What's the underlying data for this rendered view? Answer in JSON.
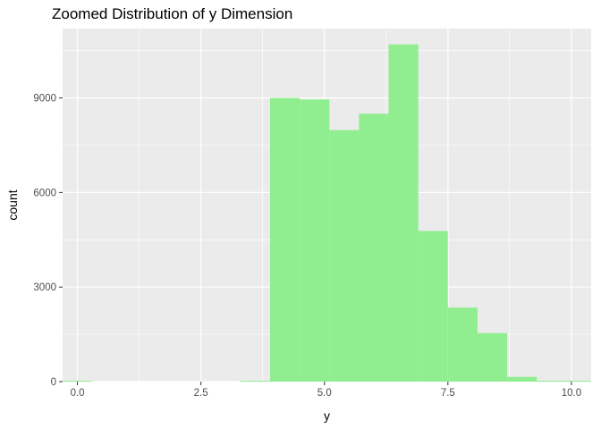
{
  "chart_data": {
    "type": "bar",
    "title": "Zoomed Distribution of y Dimension",
    "xlabel": "y",
    "ylabel": "count",
    "xlim": [
      -0.3,
      10.4
    ],
    "ylim": [
      0,
      11200
    ],
    "grid": true,
    "legend": "none",
    "colors": {
      "bar": "#90EE90",
      "panel_bg": "#EBEBEB",
      "grid": "#FFFFFF",
      "axis_text": "#4D4D4D",
      "tick": "#333333",
      "label": "#000000"
    },
    "x_ticks": [
      {
        "value": 0,
        "label": "0.0"
      },
      {
        "value": 2.5,
        "label": "2.5"
      },
      {
        "value": 5,
        "label": "5.0"
      },
      {
        "value": 7.5,
        "label": "7.5"
      },
      {
        "value": 10,
        "label": "10.0"
      }
    ],
    "x_minor": [
      1.25,
      3.75,
      6.25,
      8.75
    ],
    "y_ticks": [
      {
        "value": 0,
        "label": "0"
      },
      {
        "value": 3000,
        "label": "3000"
      },
      {
        "value": 6000,
        "label": "6000"
      },
      {
        "value": 9000,
        "label": "9000"
      }
    ],
    "y_minor": [
      1500,
      4500,
      7500,
      10500
    ],
    "bins": [
      {
        "x0": -0.3,
        "x1": 0.3,
        "count": 10
      },
      {
        "x0": 0.3,
        "x1": 3.3,
        "count": 0
      },
      {
        "x0": 3.3,
        "x1": 3.9,
        "count": 20
      },
      {
        "x0": 3.9,
        "x1": 4.5,
        "count": 9000
      },
      {
        "x0": 4.5,
        "x1": 5.1,
        "count": 8950
      },
      {
        "x0": 5.1,
        "x1": 5.7,
        "count": 7980
      },
      {
        "x0": 5.7,
        "x1": 6.3,
        "count": 8500
      },
      {
        "x0": 6.3,
        "x1": 6.9,
        "count": 10700
      },
      {
        "x0": 6.9,
        "x1": 7.5,
        "count": 4780
      },
      {
        "x0": 7.5,
        "x1": 8.1,
        "count": 2350
      },
      {
        "x0": 8.1,
        "x1": 8.7,
        "count": 1540
      },
      {
        "x0": 8.7,
        "x1": 9.3,
        "count": 150
      },
      {
        "x0": 9.3,
        "x1": 9.9,
        "count": 15
      },
      {
        "x0": 9.9,
        "x1": 10.4,
        "count": 10
      }
    ]
  }
}
